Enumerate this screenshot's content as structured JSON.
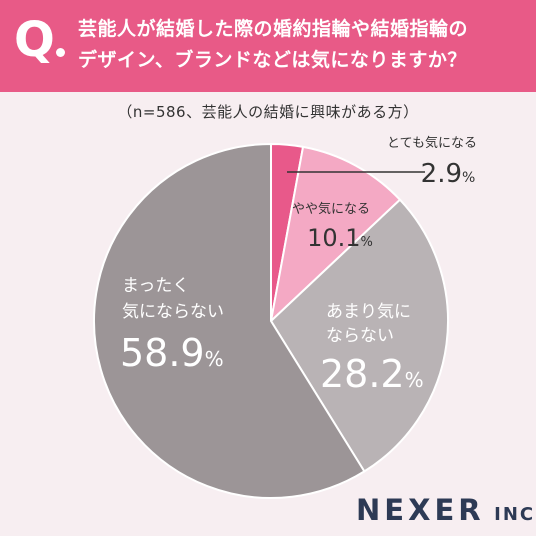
{
  "header": {
    "q_mark": "Q",
    "line1": "芸能人が結婚した際の婚約指輪や結婚指輪の",
    "line2": "デザイン、ブランドなどは気になりますか？"
  },
  "sample_note": "（n=586、芸能人の結婚に興味がある方）",
  "brand": {
    "name": "NEXER",
    "suffix": "INC."
  },
  "colors": {
    "header_bg": "#e85a87",
    "slice_1": "#e8598a",
    "slice_2": "#f4a9c4",
    "slice_3": "#b9b3b5",
    "slice_4": "#9c9597",
    "background": "#f7eef1"
  },
  "chart_data": {
    "type": "pie",
    "categories": [
      "とても気になる",
      "やや気になる",
      "あまり気にならない",
      "まったく気にならない"
    ],
    "values": [
      2.9,
      10.1,
      28.2,
      58.9
    ],
    "unit": "%",
    "slices": [
      {
        "label": "とても気になる",
        "value": "2.9",
        "unit": "%"
      },
      {
        "label": "やや気になる",
        "value": "10.1",
        "unit": "%"
      },
      {
        "label_lines": [
          "あまり気に",
          "ならない"
        ],
        "value": "28.2",
        "unit": "%"
      },
      {
        "label_lines": [
          "まったく",
          "気にならない"
        ],
        "value": "58.9",
        "unit": "%"
      }
    ]
  }
}
